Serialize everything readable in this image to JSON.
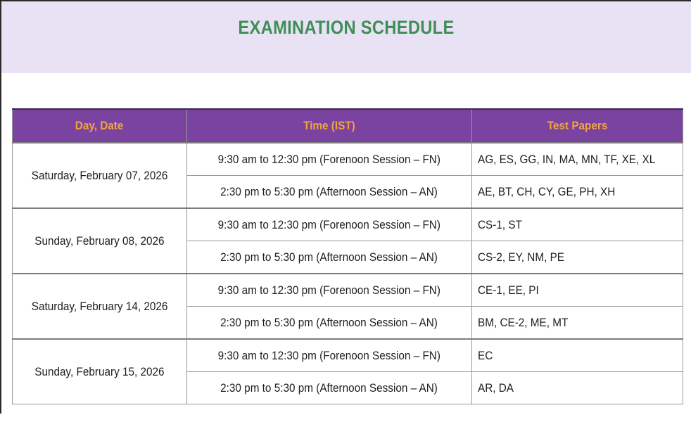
{
  "header": {
    "title": "EXAMINATION SCHEDULE"
  },
  "table": {
    "columns": [
      "Day, Date",
      "Time (IST)",
      "Test Papers"
    ],
    "rows": [
      {
        "day": "Saturday, February 07, 2026",
        "sessions": [
          {
            "time": "9:30 am to 12:30 pm (Forenoon Session – FN)",
            "papers": "AG, ES, GG, IN, MA, MN, TF, XE, XL"
          },
          {
            "time": "2:30 pm to 5:30 pm (Afternoon Session – AN)",
            "papers": "AE, BT, CH, CY, GE, PH, XH"
          }
        ]
      },
      {
        "day": "Sunday, February 08, 2026",
        "sessions": [
          {
            "time": "9:30 am to 12:30 pm (Forenoon Session – FN)",
            "papers": "CS-1, ST"
          },
          {
            "time": "2:30 pm to 5:30 pm (Afternoon Session – AN)",
            "papers": "CS-2, EY, NM, PE"
          }
        ]
      },
      {
        "day": "Saturday, February 14, 2026",
        "sessions": [
          {
            "time": "9:30 am to 12:30 pm (Forenoon Session – FN)",
            "papers": "CE-1, EE, PI"
          },
          {
            "time": "2:30 pm to 5:30 pm (Afternoon Session – AN)",
            "papers": "BM, CE-2, ME, MT"
          }
        ]
      },
      {
        "day": "Sunday, February 15, 2026",
        "sessions": [
          {
            "time": "9:30 am to 12:30 pm (Forenoon Session – FN)",
            "papers": "EC"
          },
          {
            "time": "2:30 pm to 5:30 pm (Afternoon Session – AN)",
            "papers": "AR, DA"
          }
        ]
      }
    ]
  },
  "colors": {
    "banner_bg": "#e9e2f5",
    "title": "#3e8f55",
    "header_bg": "#7a43a0",
    "header_text": "#f2a43c"
  }
}
